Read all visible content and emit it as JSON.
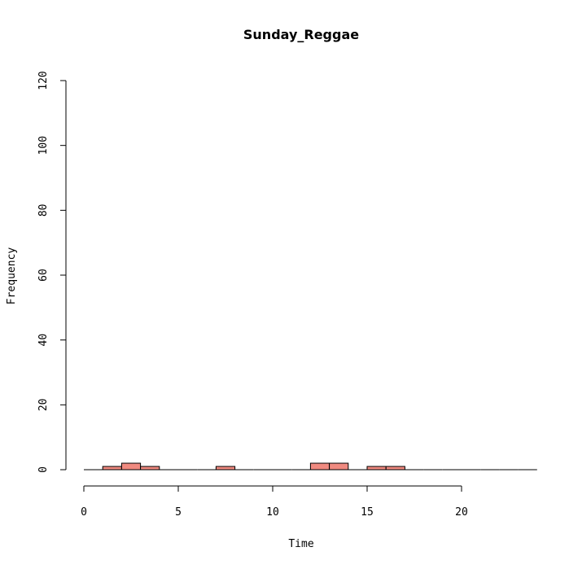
{
  "chart_data": {
    "type": "bar",
    "title": "Sunday_Reggae",
    "xlabel": "Time",
    "ylabel": "Frequency",
    "xlim": [
      0,
      24
    ],
    "ylim": [
      0,
      120
    ],
    "x_ticks": [
      0,
      5,
      10,
      15,
      20
    ],
    "y_ticks": [
      0,
      20,
      40,
      60,
      80,
      100,
      120
    ],
    "bin_width": 1,
    "bins": [
      {
        "start": 0,
        "end": 1,
        "count": 0
      },
      {
        "start": 1,
        "end": 2,
        "count": 1
      },
      {
        "start": 2,
        "end": 3,
        "count": 2
      },
      {
        "start": 3,
        "end": 4,
        "count": 1
      },
      {
        "start": 4,
        "end": 5,
        "count": 0
      },
      {
        "start": 5,
        "end": 6,
        "count": 0
      },
      {
        "start": 6,
        "end": 7,
        "count": 0
      },
      {
        "start": 7,
        "end": 8,
        "count": 1
      },
      {
        "start": 8,
        "end": 9,
        "count": 0
      },
      {
        "start": 9,
        "end": 10,
        "count": 0
      },
      {
        "start": 10,
        "end": 11,
        "count": 0
      },
      {
        "start": 11,
        "end": 12,
        "count": 0
      },
      {
        "start": 12,
        "end": 13,
        "count": 2
      },
      {
        "start": 13,
        "end": 14,
        "count": 2
      },
      {
        "start": 14,
        "end": 15,
        "count": 0
      },
      {
        "start": 15,
        "end": 16,
        "count": 1
      },
      {
        "start": 16,
        "end": 17,
        "count": 1
      },
      {
        "start": 17,
        "end": 18,
        "count": 0
      },
      {
        "start": 18,
        "end": 19,
        "count": 0
      },
      {
        "start": 19,
        "end": 20,
        "count": 0
      },
      {
        "start": 20,
        "end": 21,
        "count": 0
      },
      {
        "start": 21,
        "end": 22,
        "count": 0
      },
      {
        "start": 22,
        "end": 23,
        "count": 0
      },
      {
        "start": 23,
        "end": 24,
        "count": 0
      }
    ],
    "bar_color": "#f08a80",
    "grid": false,
    "legend": "none"
  }
}
